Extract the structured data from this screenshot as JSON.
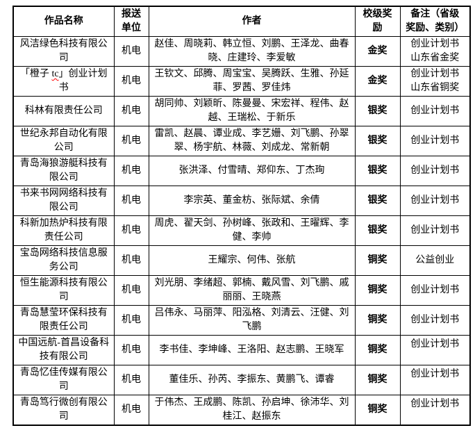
{
  "colors": {
    "border": "#000000",
    "text": "#000000",
    "background": "#ffffff",
    "spellcheck_underline": "#ff0000"
  },
  "table": {
    "headers": {
      "work_name": "作品名称",
      "unit": "报送\n单位",
      "authors": "作者",
      "award": "校级奖\n励",
      "note": "备注（省级\n奖励、类别）"
    },
    "rows": [
      {
        "name": "风洁绿色科技有限公司",
        "unit": "机电",
        "authors": "赵佳、周晓莉、韩立恒、刘鹏、王泽龙、曲春晓、庄建玲、李爱敏",
        "award": "金奖",
        "note": "创业计划书\n山东省金奖"
      },
      {
        "name_segments": [
          {
            "text": "「橙子 "
          },
          {
            "text": "tc",
            "style": "spell-error"
          },
          {
            "text": "」创业计划书"
          }
        ],
        "unit": "机电",
        "authors": "王钦文、邱腾、周宝宝、吴腾跃、生雅、孙延菲、罗茜、罗佳炜",
        "award": "金奖",
        "note": "创业计划书\n山东省铜奖"
      },
      {
        "name": "科林有限责任公司",
        "unit": "机电",
        "authors": "胡同帅、刘颖昕、陈曼曼、宋宏祥、程伟、赵越、王瑞松、于新乐",
        "award": "银奖",
        "note": "创业计划书"
      },
      {
        "name": "世纪永邦自动化有限公司",
        "unit": "机电",
        "authors": "雷凯、赵晨、谭业成、李艺姗、刘飞鹏、孙翠翠、杨宇航、林薇、刘成龙、常新朝",
        "award": "银奖",
        "note": "创业计划书"
      },
      {
        "name": "青岛海狼游艇科技有限公司",
        "unit": "机电",
        "authors": "张洪泽、付雪晴、郑仰东、丁杰珣",
        "award": "银奖",
        "note": "创业计划书"
      },
      {
        "name": "书来书网网络科技有限公司",
        "unit": "机电",
        "authors": "李宗英、董金枋、张际斌、余倩",
        "award": "银奖",
        "note": "创业计划书"
      },
      {
        "name": "科新加热炉科技有限责任公司",
        "unit": "机电",
        "authors": "周虎、翟天剑、孙树峰、张政和、王曜辉、李健、李帅",
        "award": "银奖",
        "note": "创业计划书"
      },
      {
        "name": "宝岛网络科技信息服务公司",
        "unit": "机电",
        "authors": "王耀宗、何伟、张航",
        "award": "铜奖",
        "note": "公益创业"
      },
      {
        "name": "恒生能源科技有限公司",
        "unit": "机电",
        "authors": "刘光朋、李绪超、郭楠、戴风雪、刘飞鹏、戚丽丽、王晓燕",
        "award": "铜奖",
        "note": "创业计划书"
      },
      {
        "name": "青岛慧莹环保科技有限责任公司",
        "unit": "机电",
        "authors": "吕伟永、马丽萍、阳泓格、刘清云、汪健、刘飞鹏",
        "award": "铜奖",
        "note": "创业计划书"
      },
      {
        "name": "中国远航-首昌设备科技有限公司",
        "unit": "机电",
        "authors": "李书佳、李坤峰、王洛阳、赵志鹏、王晓军",
        "award": "铜奖",
        "note": "创业计划书",
        "note_top": true
      },
      {
        "name": "青岛忆佳传媒有限公司",
        "unit": "机电",
        "authors": "董佳乐、孙芮、李振东、黄鹏飞、谭睿",
        "award": "铜奖",
        "note": "创业计划书",
        "note_top": true
      },
      {
        "name": "青岛笃行微创有限公司",
        "unit": "机电",
        "authors": "于伟杰、王成鹏、陈凯、孙启坤、徐沛华、刘桂江、赵振东",
        "award": "铜奖",
        "note": "创业计划书",
        "note_top": true
      }
    ]
  }
}
